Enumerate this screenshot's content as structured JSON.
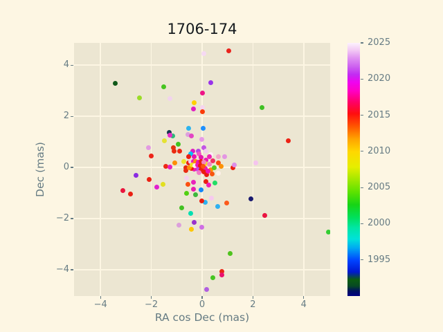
{
  "figure": {
    "title": "1706-174",
    "background": "#fdf6e3",
    "axes_background": "#ece6d2",
    "grid_color": "#fdf6e3",
    "text_color": "#657b83",
    "title_color": "#151a1e"
  },
  "chart_data": {
    "type": "scatter",
    "title": "1706-174",
    "xlabel": "RA cos Dec (mas)",
    "ylabel": "Dec (mas)",
    "xlim": [
      -5.04,
      5.04
    ],
    "ylim": [
      -5.03,
      4.87
    ],
    "grid": true,
    "xtick_values": [
      -4,
      -2,
      0,
      2,
      4
    ],
    "xtick_labels": [
      "−4",
      "−2",
      "0",
      "2",
      "4"
    ],
    "ytick_values": [
      -4,
      -2,
      0,
      2,
      4
    ],
    "ytick_labels": [
      "−4",
      "−2",
      "0",
      "2",
      "4"
    ],
    "colorbar": {
      "min": 1990,
      "max": 2025,
      "tick_values": [
        1995,
        2000,
        2005,
        2010,
        2015,
        2020,
        2025
      ],
      "tick_labels": [
        "1995",
        "2000",
        "2005",
        "2010",
        "2015",
        "2020",
        "2025"
      ],
      "gradient": [
        {
          "frac": 0.0,
          "color": "#000083"
        },
        {
          "frac": 0.02,
          "color": "#001060"
        },
        {
          "frac": 0.04,
          "color": "#074a23"
        },
        {
          "frac": 0.065,
          "color": "#0b5c10"
        },
        {
          "frac": 0.095,
          "color": "#0018cf"
        },
        {
          "frac": 0.14,
          "color": "#0042ff"
        },
        {
          "frac": 0.19,
          "color": "#00aaf2"
        },
        {
          "frac": 0.225,
          "color": "#00e2da"
        },
        {
          "frac": 0.27,
          "color": "#00e6a4"
        },
        {
          "frac": 0.31,
          "color": "#00e05c"
        },
        {
          "frac": 0.36,
          "color": "#16d416"
        },
        {
          "frac": 0.41,
          "color": "#5ce200"
        },
        {
          "frac": 0.46,
          "color": "#a2e800"
        },
        {
          "frac": 0.51,
          "color": "#e6ee00"
        },
        {
          "frac": 0.57,
          "color": "#ffd800"
        },
        {
          "frac": 0.62,
          "color": "#ffa400"
        },
        {
          "frac": 0.67,
          "color": "#ff5600"
        },
        {
          "frac": 0.72,
          "color": "#ff0e0e"
        },
        {
          "frac": 0.765,
          "color": "#ff0064"
        },
        {
          "frac": 0.81,
          "color": "#ff00c4"
        },
        {
          "frac": 0.845,
          "color": "#ee04f0"
        },
        {
          "frac": 0.875,
          "color": "#c22cf2"
        },
        {
          "frac": 0.905,
          "color": "#cc5ff0"
        },
        {
          "frac": 0.94,
          "color": "#e092f2"
        },
        {
          "frac": 0.97,
          "color": "#f2c8f4"
        },
        {
          "frac": 1.0,
          "color": "#fdf2fd"
        }
      ]
    },
    "points": [
      {
        "x": -3.41,
        "y": 3.29,
        "year": 1992,
        "color": "#10591a"
      },
      {
        "x": -1.51,
        "y": 3.14,
        "year": 2003,
        "color": "#46c41f"
      },
      {
        "x": -2.46,
        "y": 2.72,
        "year": 2006,
        "color": "#9bdc28"
      },
      {
        "x": -1.27,
        "y": 2.7,
        "year": 2024,
        "color": "#f2d3ee"
      },
      {
        "x": 1.04,
        "y": 4.57,
        "year": 2015,
        "color": "#ea231c"
      },
      {
        "x": 0.06,
        "y": 4.46,
        "year": 2024,
        "color": "#f6d9f3"
      },
      {
        "x": 0.35,
        "y": 3.31,
        "year": 2021,
        "color": "#9933ea"
      },
      {
        "x": 0.0,
        "y": 2.92,
        "year": 2017,
        "color": "#ee1487"
      },
      {
        "x": 2.36,
        "y": 2.34,
        "year": 2003,
        "color": "#3fc024"
      },
      {
        "x": 3.38,
        "y": 1.03,
        "year": 2015,
        "color": "#ed2215"
      },
      {
        "x": -0.31,
        "y": 2.53,
        "year": 2010,
        "color": "#ffd000"
      },
      {
        "x": -0.35,
        "y": 2.28,
        "year": 2018,
        "color": "#e11fc3"
      },
      {
        "x": 0.01,
        "y": 2.35,
        "year": 2024,
        "color": "#f6d4f0"
      },
      {
        "x": 0.0,
        "y": 2.17,
        "year": 2014,
        "color": "#fb3b09"
      },
      {
        "x": -0.54,
        "y": 1.52,
        "year": 1997,
        "color": "#2eb4ee"
      },
      {
        "x": 0.04,
        "y": 1.53,
        "year": 1995,
        "color": "#1e90ff"
      },
      {
        "x": -0.57,
        "y": 1.29,
        "year": 2023,
        "color": "#dda0dd"
      },
      {
        "x": -0.42,
        "y": 1.24,
        "year": 2019,
        "color": "#e344c4"
      },
      {
        "x": -1.29,
        "y": 1.36,
        "year": 1991,
        "color": "#14374e"
      },
      {
        "x": -1.15,
        "y": 1.22,
        "year": 2000,
        "color": "#2db87a"
      },
      {
        "x": -1.49,
        "y": 1.04,
        "year": 2008,
        "color": "#e5e233"
      },
      {
        "x": -2.12,
        "y": 0.76,
        "year": 2023,
        "color": "#e29ae2"
      },
      {
        "x": -2.01,
        "y": 0.44,
        "year": 2015,
        "color": "#ed2419"
      },
      {
        "x": -1.44,
        "y": 0.05,
        "year": 2015,
        "color": "#ed2815"
      },
      {
        "x": -2.61,
        "y": -0.32,
        "year": 2021,
        "color": "#8a2be2"
      },
      {
        "x": -2.09,
        "y": -0.46,
        "year": 2015,
        "color": "#eb2012"
      },
      {
        "x": -3.11,
        "y": -0.91,
        "year": 2016,
        "color": "#ea153c"
      },
      {
        "x": -2.83,
        "y": -1.04,
        "year": 2015,
        "color": "#ea2013"
      },
      {
        "x": -1.79,
        "y": -0.76,
        "year": 2018,
        "color": "#e020cf"
      },
      {
        "x": -1.53,
        "y": -0.66,
        "year": 2008,
        "color": "#e2df1f"
      },
      {
        "x": -0.8,
        "y": -1.59,
        "year": 2003,
        "color": "#43c122"
      },
      {
        "x": -0.45,
        "y": -1.79,
        "year": 1999,
        "color": "#00dfb1"
      },
      {
        "x": -0.3,
        "y": -2.14,
        "year": 2021,
        "color": "#9932cc"
      },
      {
        "x": -0.9,
        "y": -2.25,
        "year": 2023,
        "color": "#dc9fdc"
      },
      {
        "x": -0.41,
        "y": -2.41,
        "year": 2010,
        "color": "#fdc702"
      },
      {
        "x": -0.02,
        "y": -2.33,
        "year": 2022,
        "color": "#cf6ee4"
      },
      {
        "x": 1.91,
        "y": -1.24,
        "year": 1990,
        "color": "#1a1a70"
      },
      {
        "x": 0.96,
        "y": -1.4,
        "year": 2013,
        "color": "#fc5a1c"
      },
      {
        "x": 0.61,
        "y": -1.52,
        "year": 1997,
        "color": "#2fb1f0"
      },
      {
        "x": 0.11,
        "y": -1.37,
        "year": 1997,
        "color": "#2cb4f2"
      },
      {
        "x": 0.37,
        "y": -1.2,
        "year": 2024,
        "color": "#f7c9ef"
      },
      {
        "x": 2.46,
        "y": -1.89,
        "year": 2016,
        "color": "#ea1441"
      },
      {
        "x": 4.98,
        "y": -2.54,
        "year": 2003,
        "color": "#33cd33"
      },
      {
        "x": 1.1,
        "y": -3.37,
        "year": 2003,
        "color": "#4fc31d"
      },
      {
        "x": 0.77,
        "y": -4.07,
        "year": 2015,
        "color": "#ea2616"
      },
      {
        "x": 0.78,
        "y": -4.2,
        "year": 2017,
        "color": "#ea106e"
      },
      {
        "x": 0.41,
        "y": -4.32,
        "year": 2003,
        "color": "#46c522"
      },
      {
        "x": 0.19,
        "y": -4.77,
        "year": 2021,
        "color": "#b15fe0"
      },
      {
        "x": 2.1,
        "y": 0.17,
        "year": 2024,
        "color": "#f5c4ef"
      },
      {
        "x": 1.22,
        "y": -0.01,
        "year": 2015,
        "color": "#ec1f10"
      },
      {
        "x": -1.26,
        "y": 1.25,
        "year": 2018,
        "color": "#e82ec8"
      },
      {
        "x": -0.01,
        "y": 1.1,
        "year": 2023,
        "color": "#e79ae7"
      },
      {
        "x": -0.93,
        "y": 0.92,
        "year": 2003,
        "color": "#3ec41e"
      },
      {
        "x": -1.12,
        "y": 0.77,
        "year": 2015,
        "color": "#e2330e"
      },
      {
        "x": -1.11,
        "y": 0.64,
        "year": 2015,
        "color": "#ea2a10"
      },
      {
        "x": -0.88,
        "y": 0.64,
        "year": 2015,
        "color": "#ec2613"
      },
      {
        "x": -0.37,
        "y": 0.63,
        "year": 2018,
        "color": "#e020c0"
      },
      {
        "x": -0.46,
        "y": 0.53,
        "year": 1996,
        "color": "#00bfff"
      },
      {
        "x": -0.54,
        "y": 0.43,
        "year": 2015,
        "color": "#ea1f13"
      },
      {
        "x": -0.3,
        "y": 0.43,
        "year": 2018,
        "color": "#ea14b4"
      },
      {
        "x": -0.14,
        "y": 0.65,
        "year": 2021,
        "color": "#b24ae2"
      },
      {
        "x": -0.12,
        "y": 0.53,
        "year": 2019,
        "color": "#f455c2"
      },
      {
        "x": -0.04,
        "y": 0.4,
        "year": 2018,
        "color": "#e619ae"
      },
      {
        "x": -0.73,
        "y": 0.24,
        "year": 2008,
        "color": "#eee32a"
      },
      {
        "x": -1.07,
        "y": 0.18,
        "year": 2011,
        "color": "#fe8e04"
      },
      {
        "x": -0.19,
        "y": 0.24,
        "year": 2024,
        "color": "#f6cdf1"
      },
      {
        "x": 0.07,
        "y": 0.76,
        "year": 2021,
        "color": "#c355e6"
      },
      {
        "x": 0.16,
        "y": 0.63,
        "year": 2024,
        "color": "#f2cdee"
      },
      {
        "x": 0.35,
        "y": 0.51,
        "year": 2025,
        "color": "#fceef6"
      },
      {
        "x": 0.28,
        "y": 0.43,
        "year": 2018,
        "color": "#f024b4"
      },
      {
        "x": 0.65,
        "y": 0.41,
        "year": 2023,
        "color": "#f3a8c8"
      },
      {
        "x": 0.88,
        "y": 0.43,
        "year": 2023,
        "color": "#e396e3"
      },
      {
        "x": 0.65,
        "y": 0.19,
        "year": 2013,
        "color": "#fc4c0c"
      },
      {
        "x": 0.76,
        "y": 0.04,
        "year": 2011,
        "color": "#fc9204"
      },
      {
        "x": 0.41,
        "y": 0.25,
        "year": 2016,
        "color": "#f03064"
      },
      {
        "x": 0.16,
        "y": 0.28,
        "year": 2018,
        "color": "#ee17b0"
      },
      {
        "x": 0.12,
        "y": 0.14,
        "year": 2008,
        "color": "#f2e51e"
      },
      {
        "x": 0.28,
        "y": 0.11,
        "year": 2022,
        "color": "#f286c6"
      },
      {
        "x": 1.27,
        "y": 0.09,
        "year": 2022,
        "color": "#dc8ee8"
      },
      {
        "x": 0.13,
        "y": -0.05,
        "year": 2018,
        "color": "#ec1cb8"
      },
      {
        "x": 0.34,
        "y": -0.08,
        "year": 2011,
        "color": "#fc9204"
      },
      {
        "x": 0.48,
        "y": -0.02,
        "year": 2004,
        "color": "#55cc22"
      },
      {
        "x": 0.19,
        "y": -0.27,
        "year": 2015,
        "color": "#ea1813"
      },
      {
        "x": 0.39,
        "y": -0.25,
        "year": 2013,
        "color": "#f85510"
      },
      {
        "x": 0.65,
        "y": -0.24,
        "year": 2025,
        "color": "#fdf0e8"
      },
      {
        "x": 0.14,
        "y": -0.54,
        "year": 2015,
        "color": "#eb1d12"
      },
      {
        "x": 0.5,
        "y": -0.62,
        "year": 2001,
        "color": "#22dd66"
      },
      {
        "x": 0.27,
        "y": -0.69,
        "year": 2018,
        "color": "#f01eb6"
      },
      {
        "x": -1.26,
        "y": 0.01,
        "year": 2018,
        "color": "#e620c0"
      },
      {
        "x": -0.65,
        "y": -0.02,
        "year": 2015,
        "color": "#e5250e"
      },
      {
        "x": -0.64,
        "y": -0.13,
        "year": 2015,
        "color": "#ea2a12"
      },
      {
        "x": -0.6,
        "y": -0.41,
        "year": 2024,
        "color": "#f4d2ef"
      },
      {
        "x": -0.34,
        "y": -0.59,
        "year": 2018,
        "color": "#e921bb"
      },
      {
        "x": -0.55,
        "y": -0.67,
        "year": 2013,
        "color": "#fb4f0f"
      },
      {
        "x": -0.33,
        "y": -0.86,
        "year": 2018,
        "color": "#ea1cb0"
      },
      {
        "x": -0.61,
        "y": -1.02,
        "year": 2004,
        "color": "#52d011"
      },
      {
        "x": -0.26,
        "y": -1.08,
        "year": 2003,
        "color": "#3cb83c"
      },
      {
        "x": -0.03,
        "y": -0.88,
        "year": 1995,
        "color": "#1287fa"
      },
      {
        "x": -0.02,
        "y": -1.31,
        "year": 2015,
        "color": "#eb1f11"
      },
      {
        "x": -0.17,
        "y": -0.07,
        "year": 2021,
        "color": "#bc52e8"
      },
      {
        "x": -0.3,
        "y": -0.07,
        "year": 2018,
        "color": "#ee1cb4"
      },
      {
        "x": -0.41,
        "y": -0.05,
        "year": 2015,
        "color": "#ec2014"
      },
      {
        "x": -0.05,
        "y": -0.09,
        "year": 2015,
        "color": "#ea2212"
      },
      {
        "x": -0.12,
        "y": -0.2,
        "year": 2022,
        "color": "#f27ac8"
      },
      {
        "x": 0.06,
        "y": -0.18,
        "year": 2015,
        "color": "#ec1d10"
      },
      {
        "x": 0.23,
        "y": -0.16,
        "year": 2018,
        "color": "#ee16b2"
      },
      {
        "x": -0.5,
        "y": 0.0,
        "year": 2011,
        "color": "#fc8c08"
      },
      {
        "x": -0.54,
        "y": 0.18,
        "year": 2015,
        "color": "#ea2212"
      },
      {
        "x": -0.44,
        "y": 0.22,
        "year": 2024,
        "color": "#f4ccf0"
      },
      {
        "x": -0.35,
        "y": 0.22,
        "year": 2018,
        "color": "#ee1ab6"
      },
      {
        "x": -0.25,
        "y": 0.24,
        "year": 2011,
        "color": "#fc9008"
      },
      {
        "x": -0.14,
        "y": 0.2,
        "year": 2018,
        "color": "#ec18b2"
      },
      {
        "x": -0.05,
        "y": 0.24,
        "year": 2015,
        "color": "#ec1f12"
      },
      {
        "x": 0.06,
        "y": 0.2,
        "year": 2022,
        "color": "#f284c4"
      },
      {
        "x": -0.39,
        "y": 0.09,
        "year": 2008,
        "color": "#f0e41c"
      },
      {
        "x": -0.28,
        "y": 0.07,
        "year": 2025,
        "color": "#fdf1ea"
      },
      {
        "x": -0.19,
        "y": 0.09,
        "year": 2018,
        "color": "#ee1ab4"
      },
      {
        "x": -0.07,
        "y": 0.07,
        "year": 2015,
        "color": "#ec1d10"
      },
      {
        "x": 0.03,
        "y": 0.05,
        "year": 2013,
        "color": "#fc5210"
      }
    ]
  }
}
